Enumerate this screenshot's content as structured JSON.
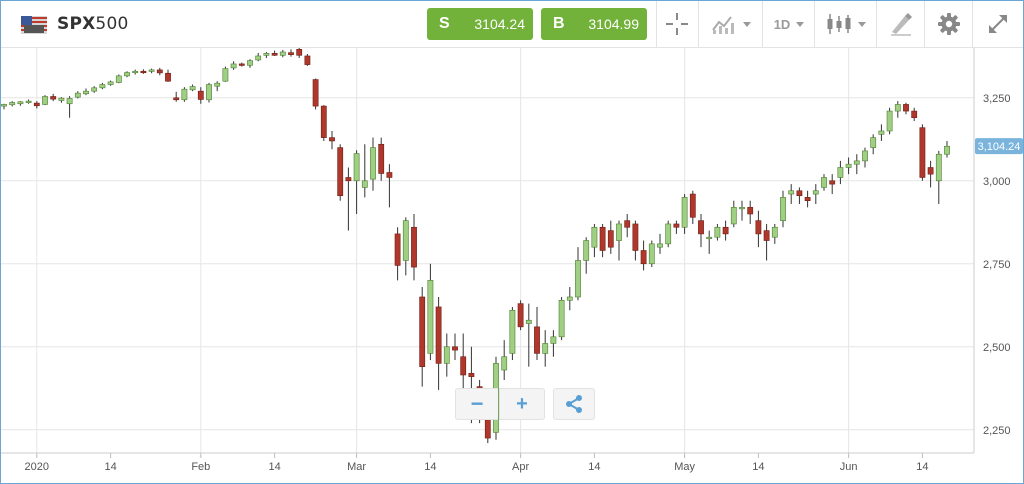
{
  "header": {
    "symbol_bold": "SPX",
    "symbol_rest": "500",
    "sell_label": "S",
    "sell_price": "3104.24",
    "buy_label": "B",
    "buy_price": "3104.99",
    "timeframe": "1D",
    "icons": [
      "usa-flag-icon",
      "crosshair-icon",
      "chart-type-icon",
      "timeframe-dropdown",
      "candlestick-icon",
      "draw-tool-icon",
      "gear-icon",
      "expand-icon"
    ]
  },
  "colors": {
    "up": "#9fcf83",
    "down": "#b0372b",
    "accent_green": "#72b23a",
    "tag": "#7ab3db",
    "grid": "#e6e6e6"
  },
  "chart_data": {
    "type": "candlestick",
    "current_price_label": "3,104.24",
    "current_price": 3104.24,
    "ylim": [
      2180,
      3400
    ],
    "y_ticks": [
      {
        "value": 3250,
        "label": "3,250"
      },
      {
        "value": 3000,
        "label": "3,000"
      },
      {
        "value": 2750,
        "label": "2,750"
      },
      {
        "value": 2500,
        "label": "2,500"
      },
      {
        "value": 2250,
        "label": "2,250"
      }
    ],
    "x_ticks": [
      {
        "index": 4,
        "label": "2020",
        "major": true
      },
      {
        "index": 13,
        "label": "14",
        "major": false
      },
      {
        "index": 24,
        "label": "Feb",
        "major": true
      },
      {
        "index": 33,
        "label": "14",
        "major": false
      },
      {
        "index": 43,
        "label": "Mar",
        "major": true
      },
      {
        "index": 52,
        "label": "14",
        "major": false
      },
      {
        "index": 63,
        "label": "Apr",
        "major": true
      },
      {
        "index": 72,
        "label": "14",
        "major": false
      },
      {
        "index": 83,
        "label": "May",
        "major": true
      },
      {
        "index": 92,
        "label": "14",
        "major": false
      },
      {
        "index": 103,
        "label": "Jun",
        "major": true
      },
      {
        "index": 112,
        "label": "14",
        "major": false
      }
    ],
    "candles": [
      [
        3225,
        3232,
        3215,
        3230
      ],
      [
        3229,
        3240,
        3224,
        3236
      ],
      [
        3232,
        3240,
        3226,
        3238
      ],
      [
        3236,
        3245,
        3232,
        3240
      ],
      [
        3234,
        3240,
        3218,
        3226
      ],
      [
        3230,
        3258,
        3228,
        3254
      ],
      [
        3254,
        3262,
        3240,
        3246
      ],
      [
        3242,
        3252,
        3235,
        3249
      ],
      [
        3232,
        3255,
        3190,
        3248
      ],
      [
        3252,
        3270,
        3248,
        3264
      ],
      [
        3262,
        3278,
        3258,
        3270
      ],
      [
        3270,
        3285,
        3265,
        3280
      ],
      [
        3280,
        3295,
        3276,
        3290
      ],
      [
        3290,
        3302,
        3286,
        3298
      ],
      [
        3296,
        3320,
        3294,
        3316
      ],
      [
        3316,
        3330,
        3312,
        3326
      ],
      [
        3326,
        3335,
        3320,
        3330
      ],
      [
        3330,
        3336,
        3322,
        3326
      ],
      [
        3330,
        3338,
        3324,
        3334
      ],
      [
        3334,
        3340,
        3318,
        3325
      ],
      [
        3324,
        3335,
        3298,
        3300
      ],
      [
        3250,
        3268,
        3238,
        3244
      ],
      [
        3244,
        3282,
        3238,
        3276
      ],
      [
        3274,
        3290,
        3270,
        3284
      ],
      [
        3270,
        3282,
        3232,
        3245
      ],
      [
        3244,
        3295,
        3236,
        3290
      ],
      [
        3285,
        3300,
        3270,
        3294
      ],
      [
        3300,
        3344,
        3298,
        3338
      ],
      [
        3340,
        3360,
        3334,
        3352
      ],
      [
        3352,
        3356,
        3344,
        3350
      ],
      [
        3348,
        3366,
        3340,
        3362
      ],
      [
        3364,
        3385,
        3360,
        3376
      ],
      [
        3378,
        3388,
        3370,
        3384
      ],
      [
        3384,
        3392,
        3376,
        3378
      ],
      [
        3378,
        3394,
        3372,
        3388
      ],
      [
        3386,
        3396,
        3374,
        3380
      ],
      [
        3396,
        3400,
        3370,
        3378
      ],
      [
        3376,
        3382,
        3346,
        3350
      ],
      [
        3305,
        3308,
        3215,
        3225
      ],
      [
        3225,
        3228,
        3120,
        3130
      ],
      [
        3130,
        3150,
        3095,
        3120
      ],
      [
        3100,
        3110,
        2940,
        2955
      ],
      [
        3010,
        3040,
        2850,
        3000
      ],
      [
        3000,
        3092,
        2900,
        3082
      ],
      [
        2980,
        3110,
        2950,
        3000
      ],
      [
        3005,
        3130,
        2970,
        3100
      ],
      [
        3110,
        3130,
        3000,
        3022
      ],
      [
        3025,
        3050,
        2920,
        3010
      ],
      [
        2840,
        2860,
        2700,
        2745
      ],
      [
        2760,
        2890,
        2715,
        2880
      ],
      [
        2860,
        2900,
        2700,
        2740
      ],
      [
        2650,
        2680,
        2380,
        2440
      ],
      [
        2480,
        2750,
        2460,
        2700
      ],
      [
        2620,
        2650,
        2370,
        2450
      ],
      [
        2450,
        2540,
        2410,
        2500
      ],
      [
        2500,
        2540,
        2460,
        2490
      ],
      [
        2470,
        2540,
        2300,
        2415
      ],
      [
        2420,
        2500,
        2270,
        2410
      ],
      [
        2380,
        2400,
        2270,
        2300
      ],
      [
        2280,
        2300,
        2210,
        2225
      ],
      [
        2242,
        2470,
        2220,
        2450
      ],
      [
        2430,
        2520,
        2400,
        2470
      ],
      [
        2480,
        2620,
        2460,
        2610
      ],
      [
        2630,
        2640,
        2550,
        2560
      ],
      [
        2570,
        2630,
        2440,
        2580
      ],
      [
        2560,
        2620,
        2460,
        2480
      ],
      [
        2480,
        2550,
        2440,
        2510
      ],
      [
        2510,
        2550,
        2470,
        2530
      ],
      [
        2530,
        2650,
        2520,
        2640
      ],
      [
        2640,
        2680,
        2610,
        2650
      ],
      [
        2650,
        2800,
        2640,
        2760
      ],
      [
        2760,
        2830,
        2720,
        2820
      ],
      [
        2800,
        2870,
        2770,
        2860
      ],
      [
        2860,
        2870,
        2770,
        2790
      ],
      [
        2850,
        2880,
        2780,
        2800
      ],
      [
        2820,
        2880,
        2760,
        2870
      ],
      [
        2880,
        2900,
        2830,
        2860
      ],
      [
        2870,
        2880,
        2760,
        2790
      ],
      [
        2790,
        2820,
        2730,
        2750
      ],
      [
        2750,
        2820,
        2740,
        2810
      ],
      [
        2800,
        2840,
        2780,
        2810
      ],
      [
        2810,
        2880,
        2800,
        2870
      ],
      [
        2870,
        2880,
        2840,
        2860
      ],
      [
        2860,
        2960,
        2840,
        2950
      ],
      [
        2960,
        2970,
        2870,
        2890
      ],
      [
        2880,
        2900,
        2800,
        2840
      ],
      [
        2830,
        2850,
        2780,
        2830
      ],
      [
        2830,
        2870,
        2820,
        2860
      ],
      [
        2860,
        2880,
        2820,
        2840
      ],
      [
        2870,
        2940,
        2860,
        2920
      ],
      [
        2920,
        2940,
        2880,
        2920
      ],
      [
        2920,
        2940,
        2870,
        2900
      ],
      [
        2880,
        2910,
        2800,
        2840
      ],
      [
        2850,
        2870,
        2760,
        2820
      ],
      [
        2830,
        2870,
        2810,
        2860
      ],
      [
        2880,
        2970,
        2860,
        2950
      ],
      [
        2960,
        2990,
        2930,
        2970
      ],
      [
        2970,
        2980,
        2930,
        2955
      ],
      [
        2950,
        2970,
        2920,
        2940
      ],
      [
        2960,
        2990,
        2930,
        2970
      ],
      [
        2980,
        3020,
        2970,
        3010
      ],
      [
        3000,
        3020,
        2960,
        2990
      ],
      [
        3010,
        3060,
        2990,
        3040
      ],
      [
        3040,
        3070,
        3020,
        3050
      ],
      [
        3050,
        3080,
        3020,
        3060
      ],
      [
        3060,
        3100,
        3040,
        3090
      ],
      [
        3100,
        3140,
        3080,
        3130
      ],
      [
        3140,
        3170,
        3120,
        3150
      ],
      [
        3150,
        3220,
        3140,
        3210
      ],
      [
        3210,
        3240,
        3190,
        3230
      ],
      [
        3230,
        3235,
        3200,
        3210
      ],
      [
        3210,
        3220,
        3180,
        3190
      ],
      [
        3160,
        3170,
        3000,
        3010
      ],
      [
        3040,
        3060,
        2980,
        3020
      ],
      [
        3000,
        3090,
        2930,
        3080
      ],
      [
        3080,
        3120,
        3070,
        3104
      ]
    ]
  },
  "zoom_controls": {
    "minus": "−",
    "plus": "+"
  }
}
